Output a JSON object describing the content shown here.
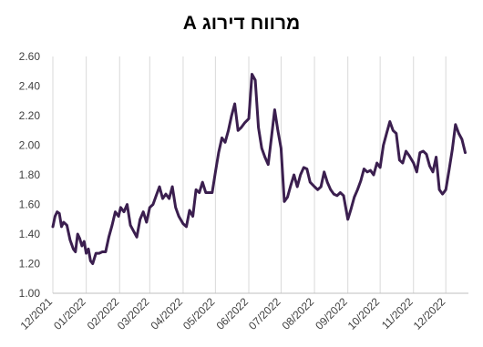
{
  "chart_data": {
    "type": "line",
    "title": "מרווח דירוג A",
    "xlabel": "",
    "ylabel": "",
    "ylim": [
      1.0,
      2.6
    ],
    "grid": {
      "horizontal": false,
      "vertical": true
    },
    "legend": "none",
    "y_ticks": [
      "1.00",
      "1.20",
      "1.40",
      "1.60",
      "1.80",
      "2.00",
      "2.20",
      "2.40",
      "2.60"
    ],
    "x_ticks": [
      "12/2021",
      "01/2022",
      "02/2022",
      "03/2022",
      "04/2022",
      "05/2022",
      "06/2022",
      "07/2022",
      "08/2022",
      "09/2022",
      "10/2022",
      "11/2022",
      "12/2022"
    ],
    "series": [
      {
        "color": "#3b1f4f",
        "x": [
          "2021-12-01",
          "2021-12-03",
          "2021-12-05",
          "2021-12-07",
          "2021-12-09",
          "2021-12-11",
          "2021-12-14",
          "2021-12-17",
          "2021-12-20",
          "2021-12-22",
          "2021-12-24",
          "2021-12-26",
          "2021-12-28",
          "2021-12-30",
          "2022-01-01",
          "2022-01-03",
          "2022-01-05",
          "2022-01-07",
          "2022-01-10",
          "2022-01-13",
          "2022-01-16",
          "2022-01-19",
          "2022-01-22",
          "2022-01-25",
          "2022-01-28",
          "2022-01-31",
          "2022-02-02",
          "2022-02-05",
          "2022-02-08",
          "2022-02-11",
          "2022-02-14",
          "2022-02-17",
          "2022-02-20",
          "2022-02-23",
          "2022-02-26",
          "2022-03-01",
          "2022-03-04",
          "2022-03-07",
          "2022-03-10",
          "2022-03-13",
          "2022-03-16",
          "2022-03-19",
          "2022-03-22",
          "2022-03-25",
          "2022-03-28",
          "2022-04-01",
          "2022-04-04",
          "2022-04-07",
          "2022-04-10",
          "2022-04-13",
          "2022-04-16",
          "2022-04-19",
          "2022-04-22",
          "2022-04-25",
          "2022-04-28",
          "2022-05-01",
          "2022-05-04",
          "2022-05-07",
          "2022-05-10",
          "2022-05-13",
          "2022-05-16",
          "2022-05-19",
          "2022-05-22",
          "2022-05-25",
          "2022-05-28",
          "2022-06-01",
          "2022-06-04",
          "2022-06-07",
          "2022-06-10",
          "2022-06-13",
          "2022-06-16",
          "2022-06-19",
          "2022-06-22",
          "2022-06-25",
          "2022-06-28",
          "2022-07-01",
          "2022-07-04",
          "2022-07-07",
          "2022-07-10",
          "2022-07-13",
          "2022-07-16",
          "2022-07-19",
          "2022-07-22",
          "2022-07-25",
          "2022-07-28",
          "2022-08-01",
          "2022-08-04",
          "2022-08-07",
          "2022-08-10",
          "2022-08-13",
          "2022-08-16",
          "2022-08-19",
          "2022-08-22",
          "2022-08-25",
          "2022-08-28",
          "2022-09-01",
          "2022-09-04",
          "2022-09-07",
          "2022-09-10",
          "2022-09-13",
          "2022-09-16",
          "2022-09-19",
          "2022-09-22",
          "2022-09-25",
          "2022-09-28",
          "2022-10-01",
          "2022-10-04",
          "2022-10-07",
          "2022-10-10",
          "2022-10-13",
          "2022-10-16",
          "2022-10-19",
          "2022-10-22",
          "2022-10-25",
          "2022-10-28",
          "2022-11-01",
          "2022-11-04",
          "2022-11-07",
          "2022-11-10",
          "2022-11-13",
          "2022-11-16",
          "2022-11-19",
          "2022-11-22",
          "2022-11-25",
          "2022-11-28",
          "2022-12-01",
          "2022-12-04",
          "2022-12-07",
          "2022-12-10",
          "2022-12-13",
          "2022-12-16",
          "2022-12-19"
        ],
        "values": [
          1.45,
          1.52,
          1.55,
          1.54,
          1.45,
          1.48,
          1.46,
          1.36,
          1.3,
          1.28,
          1.4,
          1.37,
          1.32,
          1.35,
          1.27,
          1.3,
          1.22,
          1.2,
          1.27,
          1.27,
          1.28,
          1.28,
          1.38,
          1.46,
          1.55,
          1.52,
          1.58,
          1.55,
          1.6,
          1.46,
          1.42,
          1.38,
          1.5,
          1.55,
          1.48,
          1.58,
          1.6,
          1.66,
          1.72,
          1.64,
          1.67,
          1.64,
          1.72,
          1.58,
          1.52,
          1.47,
          1.45,
          1.56,
          1.52,
          1.7,
          1.68,
          1.75,
          1.68,
          1.68,
          1.68,
          1.82,
          1.95,
          2.05,
          2.02,
          2.1,
          2.2,
          2.28,
          2.1,
          2.12,
          2.15,
          2.18,
          2.48,
          2.44,
          2.12,
          1.98,
          1.92,
          1.87,
          2.05,
          2.24,
          2.1,
          1.98,
          1.62,
          1.65,
          1.73,
          1.8,
          1.72,
          1.8,
          1.85,
          1.84,
          1.75,
          1.72,
          1.7,
          1.72,
          1.82,
          1.75,
          1.7,
          1.67,
          1.66,
          1.68,
          1.66,
          1.5,
          1.57,
          1.65,
          1.7,
          1.76,
          1.84,
          1.82,
          1.83,
          1.8,
          1.88,
          1.85,
          2.0,
          2.08,
          2.16,
          2.1,
          2.08,
          1.9,
          1.88,
          1.96,
          1.93,
          1.88,
          1.82,
          1.95,
          1.96,
          1.94,
          1.86,
          1.82,
          1.92,
          1.7,
          1.67,
          1.7,
          1.83,
          1.97,
          2.14,
          2.08,
          2.04,
          1.95
        ]
      }
    ]
  }
}
